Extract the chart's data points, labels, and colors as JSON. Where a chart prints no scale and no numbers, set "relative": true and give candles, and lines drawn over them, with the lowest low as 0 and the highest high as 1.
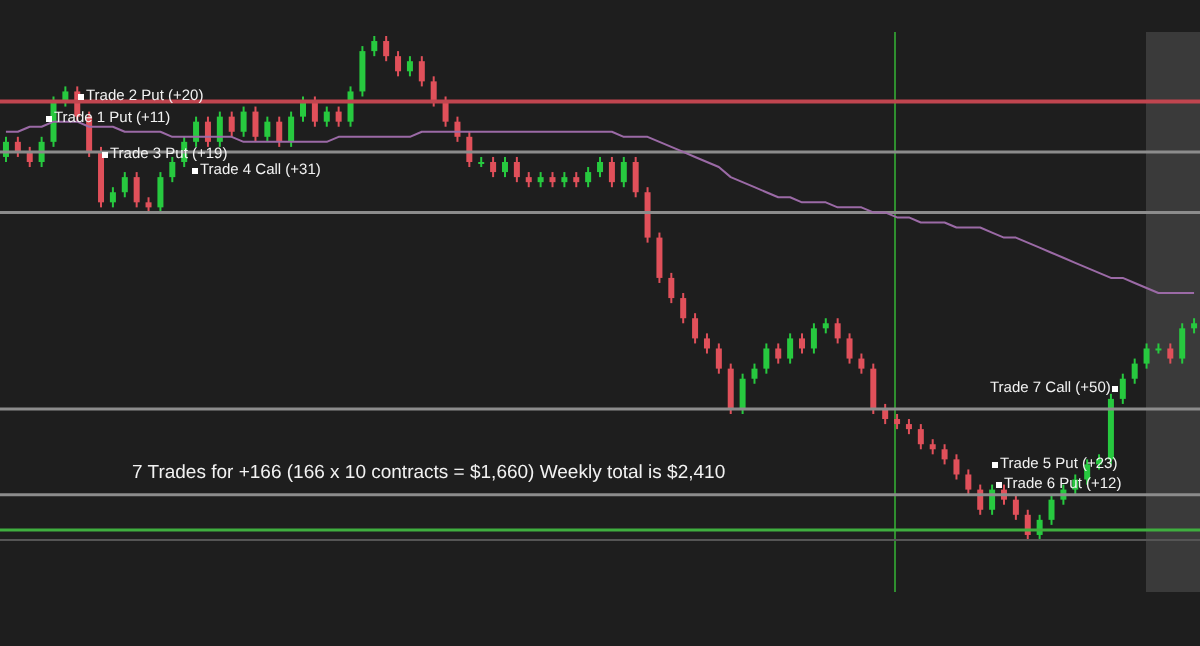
{
  "chart_data": {
    "type": "candlestick",
    "relative": true,
    "categories": [
      null,
      null,
      null,
      null,
      null,
      null,
      null,
      null,
      null,
      null,
      null,
      null,
      null,
      null,
      null,
      null,
      null,
      null,
      null,
      null,
      null,
      null,
      null,
      null,
      null,
      null,
      null,
      null,
      null,
      null,
      null,
      null,
      null,
      null,
      null,
      null,
      null,
      null,
      null,
      null,
      null,
      null,
      null,
      null,
      null,
      null,
      null,
      null,
      null,
      null,
      null,
      null,
      null,
      null,
      null,
      null,
      null,
      null,
      null,
      null,
      null,
      null,
      null,
      null,
      null,
      null,
      null,
      null,
      null,
      null,
      null,
      null,
      null,
      null,
      null,
      null,
      null,
      null,
      null,
      null,
      null,
      null,
      null,
      null,
      null,
      null,
      null,
      null,
      null,
      null,
      null,
      null,
      null,
      null,
      null,
      null,
      null,
      null,
      null,
      null,
      null
    ],
    "ohlc": [
      [
        0.76,
        0.8,
        0.75,
        0.79
      ],
      [
        0.79,
        0.8,
        0.76,
        0.77
      ],
      [
        0.77,
        0.78,
        0.74,
        0.75
      ],
      [
        0.75,
        0.8,
        0.74,
        0.79
      ],
      [
        0.79,
        0.88,
        0.78,
        0.87
      ],
      [
        0.87,
        0.9,
        0.86,
        0.89
      ],
      [
        0.89,
        0.9,
        0.83,
        0.84
      ],
      [
        0.84,
        0.85,
        0.76,
        0.77
      ],
      [
        0.77,
        0.78,
        0.66,
        0.67
      ],
      [
        0.67,
        0.7,
        0.66,
        0.69
      ],
      [
        0.69,
        0.73,
        0.68,
        0.72
      ],
      [
        0.72,
        0.73,
        0.66,
        0.67
      ],
      [
        0.67,
        0.68,
        0.65,
        0.66
      ],
      [
        0.66,
        0.73,
        0.65,
        0.72
      ],
      [
        0.72,
        0.76,
        0.71,
        0.75
      ],
      [
        0.75,
        0.8,
        0.74,
        0.79
      ],
      [
        0.79,
        0.84,
        0.78,
        0.83
      ],
      [
        0.83,
        0.84,
        0.78,
        0.79
      ],
      [
        0.79,
        0.85,
        0.78,
        0.84
      ],
      [
        0.84,
        0.85,
        0.8,
        0.81
      ],
      [
        0.81,
        0.86,
        0.8,
        0.85
      ],
      [
        0.85,
        0.86,
        0.79,
        0.8
      ],
      [
        0.8,
        0.84,
        0.79,
        0.83
      ],
      [
        0.83,
        0.84,
        0.78,
        0.79
      ],
      [
        0.79,
        0.85,
        0.78,
        0.84
      ],
      [
        0.84,
        0.88,
        0.83,
        0.87
      ],
      [
        0.87,
        0.88,
        0.82,
        0.83
      ],
      [
        0.83,
        0.86,
        0.82,
        0.85
      ],
      [
        0.85,
        0.86,
        0.82,
        0.83
      ],
      [
        0.83,
        0.9,
        0.82,
        0.89
      ],
      [
        0.89,
        0.98,
        0.88,
        0.97
      ],
      [
        0.97,
        1.0,
        0.96,
        0.99
      ],
      [
        0.99,
        1.0,
        0.95,
        0.96
      ],
      [
        0.96,
        0.97,
        0.92,
        0.93
      ],
      [
        0.93,
        0.96,
        0.92,
        0.95
      ],
      [
        0.95,
        0.96,
        0.9,
        0.91
      ],
      [
        0.91,
        0.92,
        0.86,
        0.87
      ],
      [
        0.87,
        0.88,
        0.82,
        0.83
      ],
      [
        0.83,
        0.84,
        0.79,
        0.8
      ],
      [
        0.8,
        0.81,
        0.74,
        0.75
      ],
      [
        0.75,
        0.76,
        0.74,
        0.75
      ],
      [
        0.75,
        0.76,
        0.72,
        0.73
      ],
      [
        0.73,
        0.76,
        0.72,
        0.75
      ],
      [
        0.75,
        0.76,
        0.71,
        0.72
      ],
      [
        0.72,
        0.73,
        0.7,
        0.71
      ],
      [
        0.71,
        0.73,
        0.7,
        0.72
      ],
      [
        0.72,
        0.73,
        0.7,
        0.71
      ],
      [
        0.71,
        0.73,
        0.7,
        0.72
      ],
      [
        0.72,
        0.73,
        0.7,
        0.71
      ],
      [
        0.71,
        0.74,
        0.7,
        0.73
      ],
      [
        0.73,
        0.76,
        0.72,
        0.75
      ],
      [
        0.75,
        0.76,
        0.7,
        0.71
      ],
      [
        0.71,
        0.76,
        0.7,
        0.75
      ],
      [
        0.75,
        0.76,
        0.68,
        0.69
      ],
      [
        0.69,
        0.7,
        0.59,
        0.6
      ],
      [
        0.6,
        0.61,
        0.51,
        0.52
      ],
      [
        0.52,
        0.53,
        0.47,
        0.48
      ],
      [
        0.48,
        0.49,
        0.43,
        0.44
      ],
      [
        0.44,
        0.45,
        0.39,
        0.4
      ],
      [
        0.4,
        0.41,
        0.37,
        0.38
      ],
      [
        0.38,
        0.39,
        0.33,
        0.34
      ],
      [
        0.34,
        0.35,
        0.25,
        0.26
      ],
      [
        0.26,
        0.33,
        0.25,
        0.32
      ],
      [
        0.32,
        0.35,
        0.31,
        0.34
      ],
      [
        0.34,
        0.39,
        0.33,
        0.38
      ],
      [
        0.38,
        0.39,
        0.35,
        0.36
      ],
      [
        0.36,
        0.41,
        0.35,
        0.4
      ],
      [
        0.4,
        0.41,
        0.37,
        0.38
      ],
      [
        0.38,
        0.43,
        0.37,
        0.42
      ],
      [
        0.42,
        0.44,
        0.41,
        0.43
      ],
      [
        0.43,
        0.44,
        0.39,
        0.4
      ],
      [
        0.4,
        0.41,
        0.35,
        0.36
      ],
      [
        0.36,
        0.37,
        0.33,
        0.34
      ],
      [
        0.34,
        0.35,
        0.25,
        0.26
      ],
      [
        0.26,
        0.27,
        0.23,
        0.24
      ],
      [
        0.24,
        0.25,
        0.22,
        0.23
      ],
      [
        0.23,
        0.24,
        0.21,
        0.22
      ],
      [
        0.22,
        0.23,
        0.18,
        0.19
      ],
      [
        0.19,
        0.2,
        0.17,
        0.18
      ],
      [
        0.18,
        0.19,
        0.15,
        0.16
      ],
      [
        0.16,
        0.17,
        0.12,
        0.13
      ],
      [
        0.13,
        0.14,
        0.09,
        0.1
      ],
      [
        0.1,
        0.11,
        0.05,
        0.06
      ],
      [
        0.06,
        0.11,
        0.05,
        0.1
      ],
      [
        0.1,
        0.11,
        0.07,
        0.08
      ],
      [
        0.08,
        0.09,
        0.04,
        0.05
      ],
      [
        0.05,
        0.06,
        0.0,
        0.01
      ],
      [
        0.01,
        0.05,
        0.0,
        0.04
      ],
      [
        0.04,
        0.09,
        0.03,
        0.08
      ],
      [
        0.08,
        0.11,
        0.07,
        0.1
      ],
      [
        0.1,
        0.13,
        0.09,
        0.12
      ],
      [
        0.12,
        0.16,
        0.11,
        0.15
      ],
      [
        0.15,
        0.17,
        0.14,
        0.16
      ],
      [
        0.16,
        0.29,
        0.15,
        0.28
      ],
      [
        0.28,
        0.33,
        0.27,
        0.32
      ],
      [
        0.32,
        0.36,
        0.31,
        0.35
      ],
      [
        0.35,
        0.39,
        0.34,
        0.38
      ],
      [
        0.38,
        0.39,
        0.37,
        0.38
      ],
      [
        0.38,
        0.39,
        0.35,
        0.36
      ],
      [
        0.36,
        0.43,
        0.35,
        0.42
      ],
      [
        0.42,
        0.44,
        0.41,
        0.43
      ]
    ],
    "series": [
      {
        "type": "line",
        "color": "#9b6aa6",
        "values": [
          0.81,
          0.81,
          0.82,
          0.82,
          0.83,
          0.83,
          0.83,
          0.82,
          0.82,
          0.82,
          0.81,
          0.81,
          0.81,
          0.81,
          0.8,
          0.8,
          0.8,
          0.8,
          0.8,
          0.8,
          0.79,
          0.79,
          0.79,
          0.79,
          0.79,
          0.79,
          0.79,
          0.79,
          0.8,
          0.8,
          0.8,
          0.8,
          0.8,
          0.8,
          0.8,
          0.81,
          0.81,
          0.81,
          0.81,
          0.81,
          0.81,
          0.81,
          0.81,
          0.81,
          0.81,
          0.81,
          0.81,
          0.81,
          0.81,
          0.81,
          0.81,
          0.81,
          0.8,
          0.8,
          0.8,
          0.79,
          0.78,
          0.77,
          0.76,
          0.75,
          0.74,
          0.72,
          0.71,
          0.7,
          0.69,
          0.68,
          0.68,
          0.67,
          0.67,
          0.67,
          0.66,
          0.66,
          0.66,
          0.65,
          0.65,
          0.64,
          0.64,
          0.63,
          0.63,
          0.63,
          0.62,
          0.62,
          0.62,
          0.61,
          0.6,
          0.6,
          0.59,
          0.58,
          0.57,
          0.56,
          0.55,
          0.54,
          0.53,
          0.52,
          0.52,
          0.51,
          0.5,
          0.49,
          0.49,
          0.49,
          0.49
        ]
      }
    ],
    "ref_lines": [
      {
        "axis": "y",
        "value": 0.87,
        "label": null,
        "color": "#c0454f"
      },
      {
        "axis": "y",
        "value": 0.77,
        "label": null,
        "color": "#8c8c8c"
      },
      {
        "axis": "y",
        "value": 0.65,
        "label": null,
        "color": "#8c8c8c"
      },
      {
        "axis": "y",
        "value": 0.26,
        "label": null,
        "color": "#8c8c8c"
      },
      {
        "axis": "y",
        "value": 0.09,
        "label": null,
        "color": "#8c8c8c"
      },
      {
        "axis": "y",
        "value": 0.02,
        "label": null,
        "color": "#3fae3f"
      }
    ],
    "annotations": [
      "Trade 2 Put (+20)",
      "Trade 1 Put (+11)",
      "Trade 3 Put (+19)",
      "Trade 4 Call (+31)",
      "Trade 7 Call (+50)",
      "Trade 5 Put (+23)",
      "Trade 6 Put (+12)",
      "7 Trades for +166 (166 x 10 contracts = $1,660) Weekly total is $2,410"
    ]
  }
}
